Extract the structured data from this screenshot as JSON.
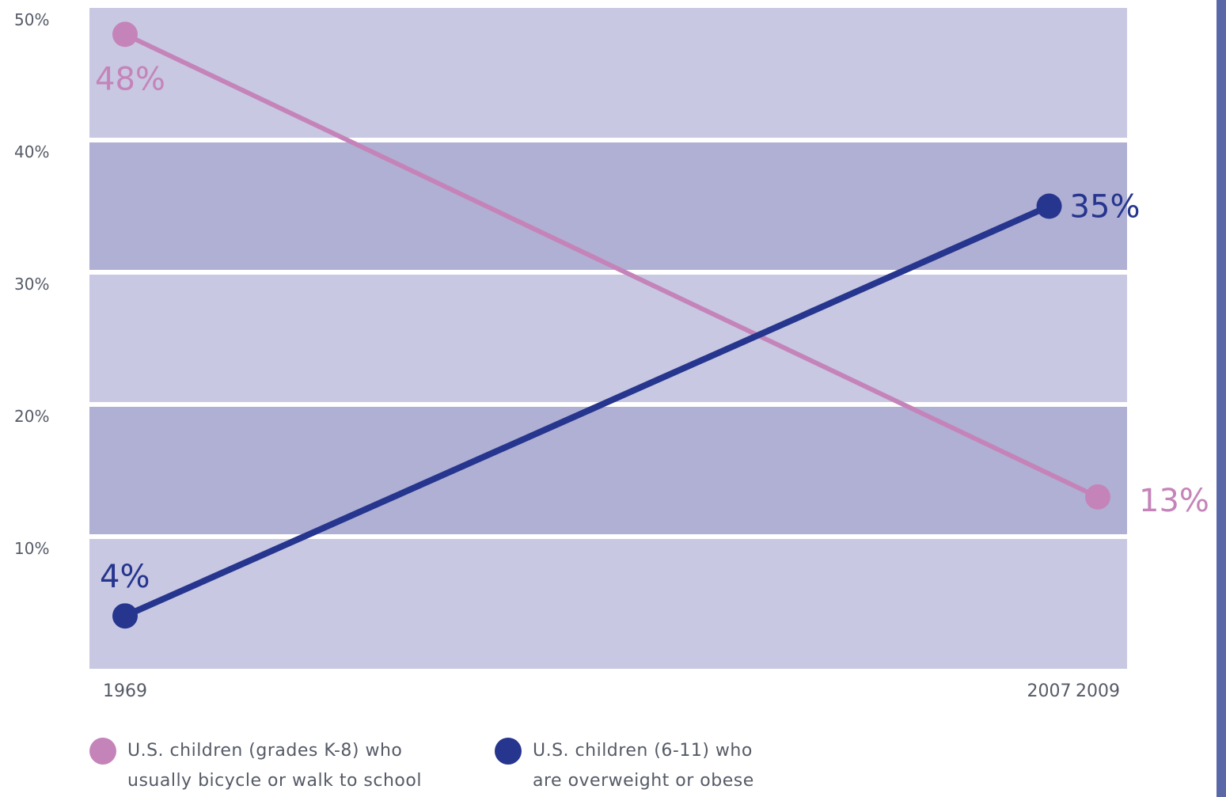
{
  "chart_data": {
    "type": "line",
    "x": [
      1969,
      2007,
      2009
    ],
    "xtick_labels": [
      "1969",
      "2007",
      "2009"
    ],
    "yticks": [
      "10%",
      "20%",
      "30%",
      "40%",
      "50%"
    ],
    "ylim": [
      0,
      50
    ],
    "grid": "alternating horizontal bands",
    "legend_position": "bottom",
    "series": [
      {
        "name": "U.S. children (grades K-8) who usually bicycle or walk to school",
        "color": "#c584b9",
        "points": [
          {
            "x": 1969,
            "y": 48
          },
          {
            "x": 2009,
            "y": 13
          }
        ],
        "labels": [
          "48%",
          "13%"
        ]
      },
      {
        "name": "U.S. children (6-11) who are overweight or obese",
        "color": "#26358e",
        "points": [
          {
            "x": 1969,
            "y": 4
          },
          {
            "x": 2007,
            "y": 35
          }
        ],
        "labels": [
          "4%",
          "35%"
        ]
      }
    ],
    "band_colors": [
      "#c8c8e2",
      "#b0b0d4"
    ]
  },
  "legend": {
    "item1": "U.S. children (grades K-8) who\nusually bicycle or walk to school",
    "item2": "U.S. children (6-11) who\nare overweight or obese"
  }
}
